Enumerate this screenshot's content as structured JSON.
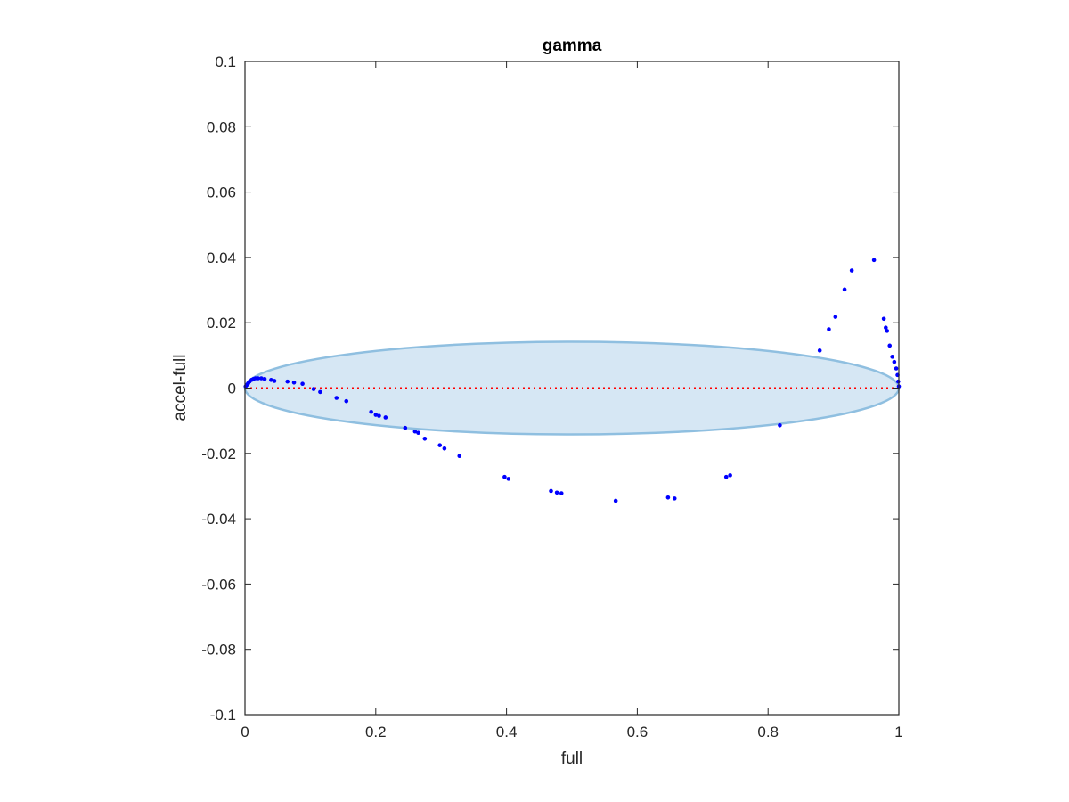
{
  "chart_data": {
    "type": "scatter",
    "title": "gamma",
    "xlabel": "full",
    "ylabel": "accel-full",
    "xlim": [
      0,
      1
    ],
    "ylim": [
      -0.1,
      0.1
    ],
    "x_ticks": [
      0,
      0.2,
      0.4,
      0.6,
      0.8,
      1
    ],
    "x_tick_labels": [
      "0",
      "0.2",
      "0.4",
      "0.6",
      "0.8",
      "1"
    ],
    "y_ticks": [
      -0.1,
      -0.08,
      -0.06,
      -0.04,
      -0.02,
      0,
      0.02,
      0.04,
      0.06,
      0.08,
      0.1
    ],
    "y_tick_labels": [
      "-0.1",
      "-0.08",
      "-0.06",
      "-0.04",
      "-0.02",
      "0",
      "0.02",
      "0.04",
      "0.06",
      "0.08",
      "0.1"
    ],
    "grid": false,
    "point_color": "#0000ff",
    "reference_line": {
      "y": 0,
      "style": "dotted",
      "color": "#ff0000"
    },
    "ellipse": {
      "cx": 0.5,
      "cy": 0,
      "rx": 0.5,
      "ry": 0.0142,
      "fill": "#d6e7f4",
      "stroke": "#8fbfe0"
    },
    "series": [
      {
        "points": [
          [
            0.001,
            0.0005
          ],
          [
            0.003,
            0.001
          ],
          [
            0.005,
            0.0015
          ],
          [
            0.007,
            0.002
          ],
          [
            0.01,
            0.0025
          ],
          [
            0.013,
            0.0028
          ],
          [
            0.016,
            0.003
          ],
          [
            0.02,
            0.003
          ],
          [
            0.025,
            0.003
          ],
          [
            0.03,
            0.0028
          ],
          [
            0.04,
            0.0025
          ],
          [
            0.045,
            0.0022
          ],
          [
            0.065,
            0.002
          ],
          [
            0.075,
            0.0017
          ],
          [
            0.088,
            0.0013
          ],
          [
            0.105,
            -0.0003
          ],
          [
            0.115,
            -0.0012
          ],
          [
            0.14,
            -0.003
          ],
          [
            0.155,
            -0.004
          ],
          [
            0.193,
            -0.0073
          ],
          [
            0.2,
            -0.0082
          ],
          [
            0.205,
            -0.0085
          ],
          [
            0.215,
            -0.009
          ],
          [
            0.245,
            -0.0122
          ],
          [
            0.26,
            -0.0133
          ],
          [
            0.265,
            -0.0137
          ],
          [
            0.275,
            -0.0155
          ],
          [
            0.298,
            -0.0175
          ],
          [
            0.305,
            -0.0185
          ],
          [
            0.328,
            -0.0208
          ],
          [
            0.397,
            -0.0272
          ],
          [
            0.403,
            -0.0278
          ],
          [
            0.468,
            -0.0315
          ],
          [
            0.477,
            -0.032
          ],
          [
            0.484,
            -0.0322
          ],
          [
            0.567,
            -0.0345
          ],
          [
            0.647,
            -0.0335
          ],
          [
            0.657,
            -0.0338
          ],
          [
            0.736,
            -0.0272
          ],
          [
            0.742,
            -0.0267
          ],
          [
            0.818,
            -0.0114
          ],
          [
            0.879,
            0.0115
          ],
          [
            0.893,
            0.018
          ],
          [
            0.903,
            0.0218
          ],
          [
            0.917,
            0.0302
          ],
          [
            0.928,
            0.036
          ],
          [
            0.962,
            0.0392
          ],
          [
            0.977,
            0.0212
          ],
          [
            0.98,
            0.0185
          ],
          [
            0.982,
            0.0175
          ],
          [
            0.986,
            0.013
          ],
          [
            0.99,
            0.0096
          ],
          [
            0.993,
            0.008
          ],
          [
            0.996,
            0.006
          ],
          [
            0.998,
            0.004
          ],
          [
            0.999,
            0.002
          ],
          [
            1.0,
            0.0005
          ]
        ]
      }
    ]
  }
}
